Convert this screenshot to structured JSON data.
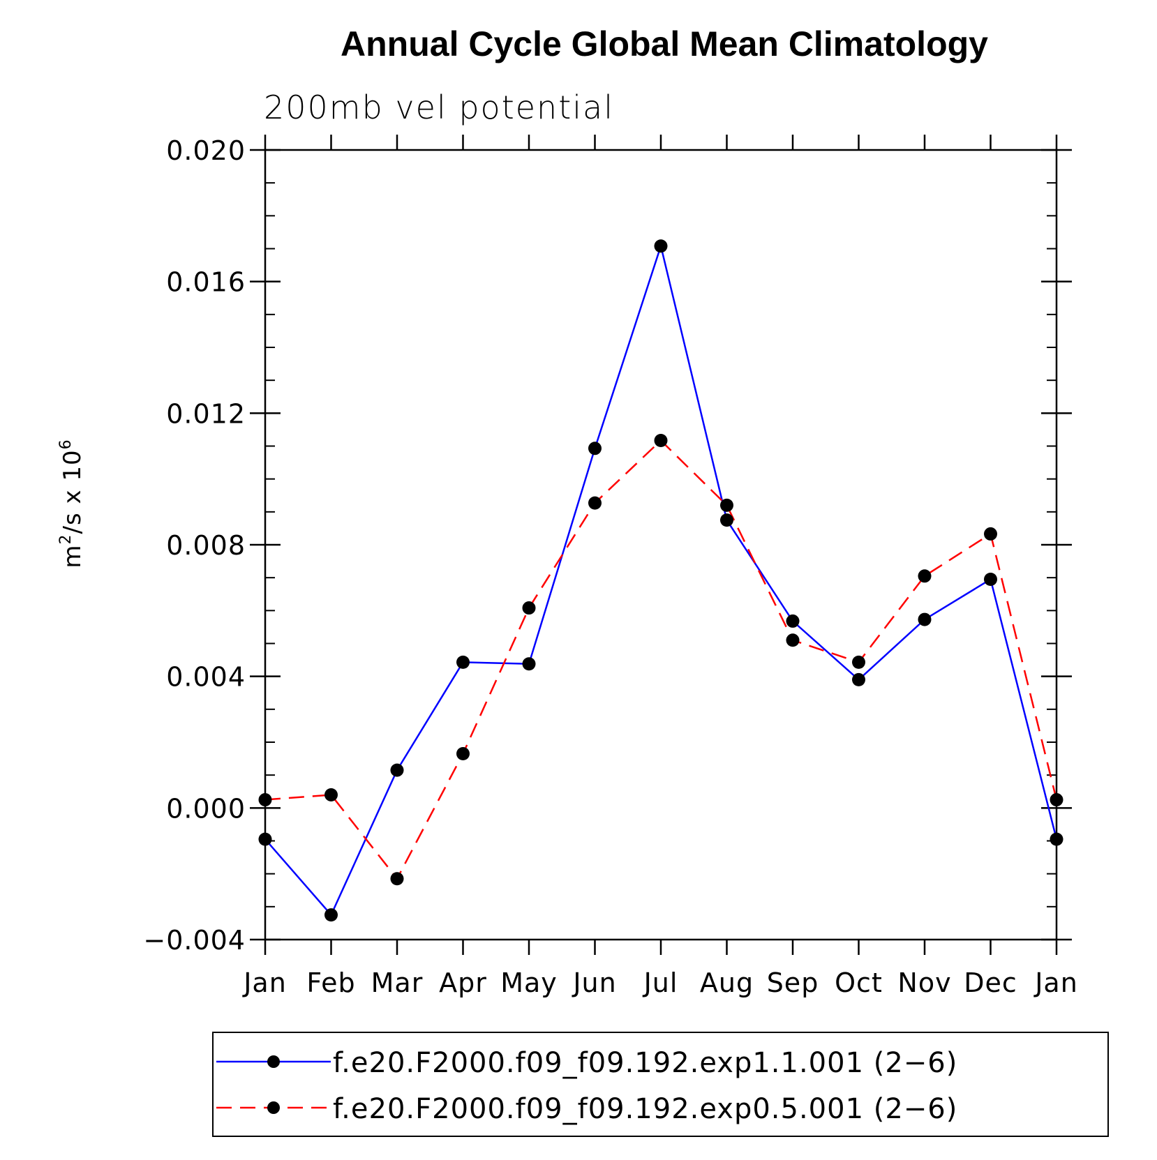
{
  "chart_data": {
    "type": "line",
    "title": "Annual Cycle Global Mean Climatology",
    "subtitle": "200mb vel potential",
    "ylabel_base": "m",
    "ylabel_sup1": "2",
    "ylabel_mid": "/s x 10",
    "ylabel_sup2": "6",
    "categories": [
      "Jan",
      "Feb",
      "Mar",
      "Apr",
      "May",
      "Jun",
      "Jul",
      "Aug",
      "Sep",
      "Oct",
      "Nov",
      "Dec",
      "Jan"
    ],
    "ylim": [
      -0.004,
      0.02
    ],
    "yticks": [
      -0.004,
      0.0,
      0.004,
      0.008,
      0.012,
      0.016,
      0.02
    ],
    "ytick_labels": [
      "−0.004",
      "0.000",
      "0.004",
      "0.008",
      "0.012",
      "0.016",
      "0.020"
    ],
    "series": [
      {
        "name": "f.e20.F2000.f09_f09.192.exp1.1.001 (2−6)",
        "color": "#0000ff",
        "dash": "solid",
        "values": [
          -0.00095,
          -0.00325,
          0.00115,
          0.00443,
          0.00438,
          0.01093,
          0.01708,
          0.00875,
          0.00568,
          0.0039,
          0.00573,
          0.00695,
          -0.00095
        ]
      },
      {
        "name": "f.e20.F2000.f09_f09.192.exp0.5.001 (2−6)",
        "color": "#ff0000",
        "dash": "dashed",
        "values": [
          0.00025,
          0.0004,
          -0.00215,
          0.00165,
          0.00608,
          0.00927,
          0.01117,
          0.0092,
          0.0051,
          0.00443,
          0.00705,
          0.00833,
          0.00025
        ]
      }
    ],
    "marker_color": "#000000",
    "legend_position": "bottom"
  }
}
